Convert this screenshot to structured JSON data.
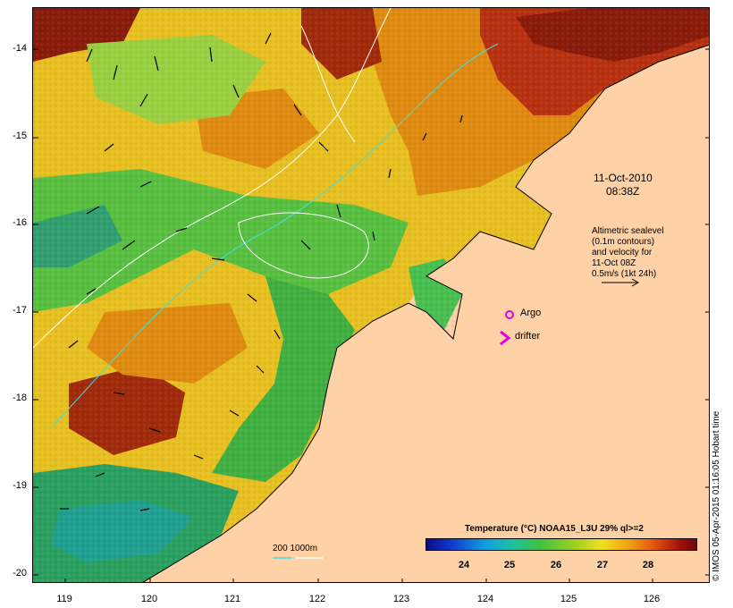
{
  "map": {
    "date_label": "11-Oct-2010",
    "time_label": "08:38Z",
    "legend_lines": [
      "Altimetric sealevel",
      "(0.1m contours)",
      "and velocity for",
      "11-Oct 08Z",
      "0.5m/s (1kt 24h)"
    ],
    "argo_label": "Argo",
    "drifter_label": "drifter",
    "bathy_label": "200  1000m",
    "credit": "© IMOS 05-Apr-2015 01:16:05 Hobart time",
    "colorbar_title": "Temperature (°C) NOAA15_L3U 29% ql>=2",
    "colorbar_ticks": [
      "24",
      "25",
      "26",
      "27",
      "28"
    ],
    "lat_ticks": [
      "-14",
      "-15",
      "-16",
      "-17",
      "-18",
      "-19",
      "-20"
    ],
    "lon_ticks": [
      "119",
      "120",
      "121",
      "122",
      "123",
      "124",
      "125",
      "126"
    ],
    "colors": {
      "land": "#ffd1a6",
      "argo": "#e000e0",
      "drifter": "#e000e0",
      "bathy_200": "#40e0e0",
      "bathy_1000": "#ffffff"
    }
  }
}
